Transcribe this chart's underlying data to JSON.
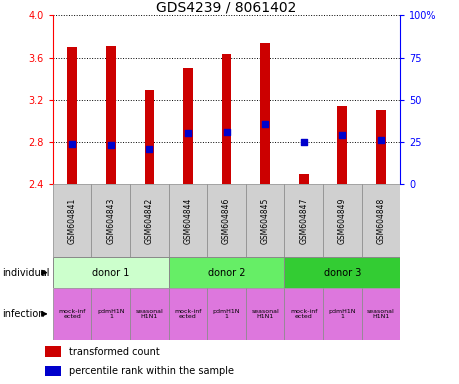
{
  "title": "GDS4239 / 8061402",
  "samples": [
    "GSM604841",
    "GSM604843",
    "GSM604842",
    "GSM604844",
    "GSM604846",
    "GSM604845",
    "GSM604847",
    "GSM604849",
    "GSM604848"
  ],
  "bar_values": [
    3.7,
    3.71,
    3.29,
    3.5,
    3.63,
    3.74,
    2.5,
    3.14,
    3.1
  ],
  "bar_bottom": 2.4,
  "percentile_values": [
    2.78,
    2.77,
    2.73,
    2.89,
    2.9,
    2.97,
    2.8,
    2.87,
    2.82
  ],
  "ylim": [
    2.4,
    4.0
  ],
  "y2lim": [
    0,
    100
  ],
  "yticks": [
    2.4,
    2.8,
    3.2,
    3.6,
    4.0
  ],
  "y2ticks": [
    0,
    25,
    50,
    75,
    100
  ],
  "bar_color": "#cc0000",
  "percentile_color": "#0000cc",
  "donors": [
    {
      "label": "donor 1",
      "start": 0,
      "end": 3,
      "color": "#ccffcc"
    },
    {
      "label": "donor 2",
      "start": 3,
      "end": 6,
      "color": "#66ee66"
    },
    {
      "label": "donor 3",
      "start": 6,
      "end": 9,
      "color": "#33cc33"
    }
  ],
  "infection_labels": [
    "mock-inf\nected",
    "pdmH1N\n1",
    "seasonal\nH1N1",
    "mock-inf\nected",
    "pdmH1N\n1",
    "seasonal\nH1N1",
    "mock-inf\nected",
    "pdmH1N\n1",
    "seasonal\nH1N1"
  ],
  "infection_color": "#dd77dd",
  "sample_bg_color": "#d0d0d0",
  "title_fontsize": 10,
  "tick_fontsize": 7,
  "legend_fontsize": 7,
  "bar_width": 0.25
}
